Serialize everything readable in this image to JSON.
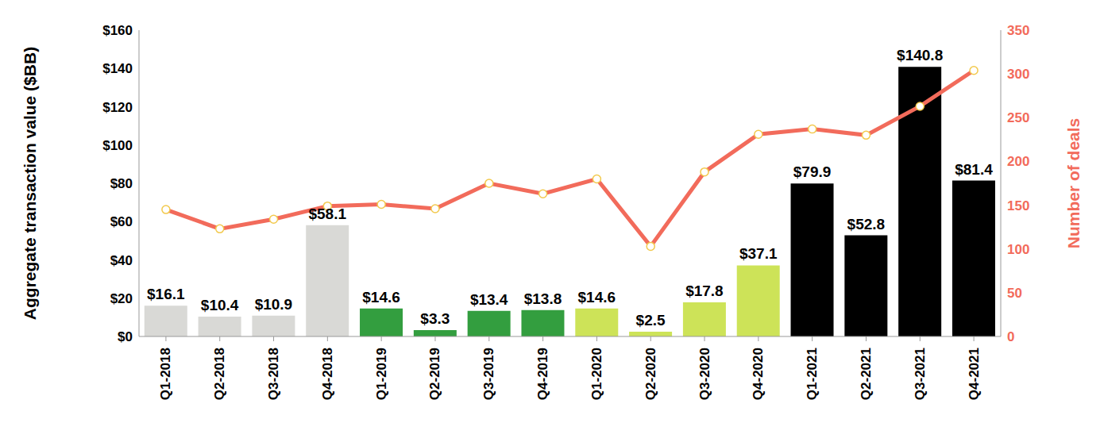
{
  "chart_data": {
    "type": "bar",
    "y_label": "Aggregate transaction value ($BB)",
    "y2_label": "Number of deals",
    "categories": [
      "Q1-2018",
      "Q2-2018",
      "Q3-2018",
      "Q4-2018",
      "Q1-2019",
      "Q2-2019",
      "Q3-2019",
      "Q4-2019",
      "Q1-2020",
      "Q2-2020",
      "Q3-2020",
      "Q4-2020",
      "Q1-2021",
      "Q2-2021",
      "Q3-2021",
      "Q4-2021"
    ],
    "series": [
      {
        "type": "bar",
        "data_labels": true,
        "colors": [
          "#d9d9d6",
          "#d9d9d6",
          "#d9d9d6",
          "#d9d9d6",
          "#339e3f",
          "#339e3f",
          "#339e3f",
          "#339e3f",
          "#cde358",
          "#cde358",
          "#cde358",
          "#cde358",
          "#000000",
          "#000000",
          "#000000",
          "#000000"
        ],
        "values": [
          16.1,
          10.4,
          10.9,
          58.1,
          14.6,
          3.3,
          13.4,
          13.8,
          14.6,
          2.5,
          17.8,
          37.1,
          79.9,
          52.8,
          140.8,
          81.4
        ],
        "value_labels": [
          "$16.1",
          "$10.4",
          "$10.9",
          "$58.1",
          "$14.6",
          "$3.3",
          "$13.4",
          "$13.8",
          "$14.6",
          "$2.5",
          "$17.8",
          "$37.1",
          "$79.9",
          "$52.8",
          "$140.8",
          "$81.4"
        ]
      },
      {
        "type": "line",
        "axis": "y2",
        "color": "#f26b5b",
        "marker": "circle",
        "values": [
          145,
          123,
          134,
          149,
          151,
          146,
          175,
          163,
          180,
          103,
          188,
          231,
          237,
          230,
          263,
          304
        ]
      }
    ],
    "ylim": [
      0,
      160
    ],
    "yticks": [
      {
        "value": 0,
        "label": "$0"
      },
      {
        "value": 20,
        "label": "$20"
      },
      {
        "value": 40,
        "label": "$40"
      },
      {
        "value": 60,
        "label": "$60"
      },
      {
        "value": 80,
        "label": "$80"
      },
      {
        "value": 100,
        "label": "$100"
      },
      {
        "value": 120,
        "label": "$120"
      },
      {
        "value": 140,
        "label": "$140"
      },
      {
        "value": 160,
        "label": "$160"
      }
    ],
    "y2lim": [
      0,
      350
    ],
    "y2ticks": [
      0,
      50,
      100,
      150,
      200,
      250,
      300,
      350
    ],
    "grid": false
  }
}
